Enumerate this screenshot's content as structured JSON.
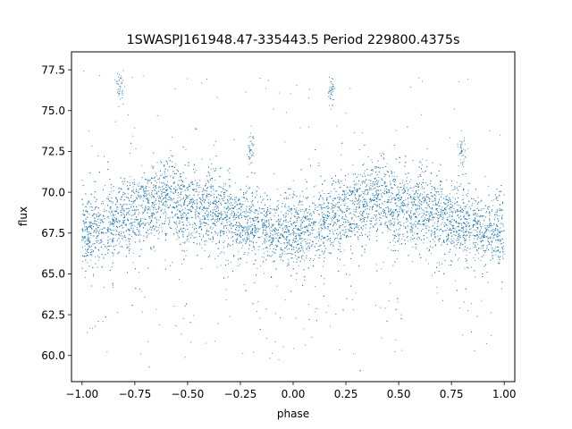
{
  "chart_data": {
    "type": "scatter",
    "title": "1SWASPJ161948.47-335443.5 Period 229800.4375s",
    "xlabel": "phase",
    "ylabel": "flux",
    "xlim": [
      -1.05,
      1.05
    ],
    "ylim": [
      58.4,
      78.6
    ],
    "xticks": [
      -1.0,
      -0.75,
      -0.5,
      -0.25,
      0.0,
      0.25,
      0.5,
      0.75,
      1.0
    ],
    "xtick_labels": [
      "−1.00",
      "−0.75",
      "−0.50",
      "−0.25",
      "0.00",
      "0.25",
      "0.50",
      "0.75",
      "1.00"
    ],
    "yticks": [
      60.0,
      62.5,
      65.0,
      67.5,
      70.0,
      72.5,
      75.0,
      77.5
    ],
    "ytick_labels": [
      "60.0",
      "62.5",
      "65.0",
      "67.5",
      "70.0",
      "72.5",
      "75.0",
      "77.5"
    ],
    "grid": false,
    "point_color": "#1f77b4",
    "series_profile": {
      "phase": [
        -1.0,
        -0.9,
        -0.8,
        -0.7,
        -0.6,
        -0.5,
        -0.4,
        -0.3,
        -0.2,
        -0.1,
        0.0,
        0.1,
        0.2,
        0.3,
        0.4,
        0.5,
        0.6,
        0.7,
        0.8,
        0.9,
        1.0
      ],
      "mean_flux": [
        67.6,
        67.9,
        68.6,
        68.9,
        69.5,
        69.0,
        68.9,
        68.6,
        68.0,
        67.7,
        67.5,
        67.8,
        68.4,
        68.9,
        69.6,
        69.0,
        68.9,
        68.5,
        68.0,
        67.6,
        67.5
      ]
    },
    "flare_clusters": [
      {
        "phase": -0.82,
        "flux": 76.5
      },
      {
        "phase": 0.18,
        "flux": 76.2
      },
      {
        "phase": -0.2,
        "flux": 72.5
      },
      {
        "phase": 0.8,
        "flux": 72.5
      }
    ]
  }
}
